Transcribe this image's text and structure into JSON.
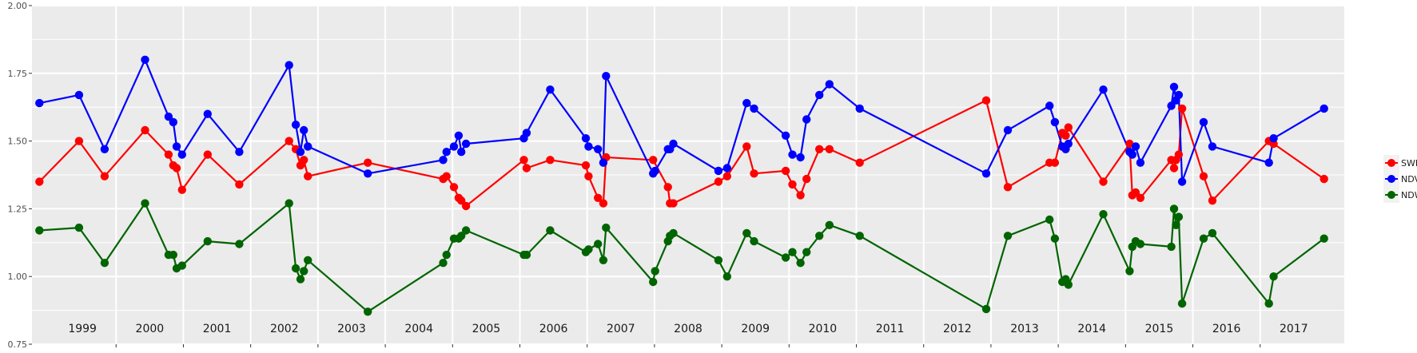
{
  "chart_data": {
    "type": "line",
    "title": "",
    "xlabel": "",
    "ylabel": "",
    "ylim": [
      0.75,
      2.0
    ],
    "xlim": [
      1998.25,
      2017.75
    ],
    "y_ticks": [
      "0.75",
      "1.00",
      "1.25",
      "1.50",
      "1.75",
      "2.00"
    ],
    "year_labels": [
      "1999",
      "2000",
      "2001",
      "2002",
      "2003",
      "2004",
      "2005",
      "2006",
      "2007",
      "2008",
      "2009",
      "2010",
      "2011",
      "2012",
      "2013",
      "2014",
      "2015",
      "2016",
      "2017"
    ],
    "grid": true,
    "legend_position": "right",
    "colors": {
      "panel_bg": "#ebebeb",
      "grid": "#ffffff"
    },
    "series": [
      {
        "name": "SWIR",
        "color": "#ff0000",
        "points": [
          [
            1998.36,
            1.35
          ],
          [
            1998.95,
            1.5
          ],
          [
            1999.33,
            1.37
          ],
          [
            1999.93,
            1.54
          ],
          [
            2000.28,
            1.45
          ],
          [
            2000.35,
            1.41
          ],
          [
            2000.4,
            1.4
          ],
          [
            2000.48,
            1.32
          ],
          [
            2000.86,
            1.45
          ],
          [
            2001.33,
            1.34
          ],
          [
            2002.07,
            1.5
          ],
          [
            2002.17,
            1.47
          ],
          [
            2002.24,
            1.41
          ],
          [
            2002.29,
            1.43
          ],
          [
            2002.35,
            1.37
          ],
          [
            2003.24,
            1.42
          ],
          [
            2004.36,
            1.36
          ],
          [
            2004.41,
            1.37
          ],
          [
            2004.52,
            1.33
          ],
          [
            2004.59,
            1.29
          ],
          [
            2004.63,
            1.28
          ],
          [
            2004.7,
            1.26
          ],
          [
            2005.56,
            1.43
          ],
          [
            2005.6,
            1.4
          ],
          [
            2005.95,
            1.43
          ],
          [
            2006.48,
            1.41
          ],
          [
            2006.52,
            1.37
          ],
          [
            2006.66,
            1.29
          ],
          [
            2006.74,
            1.27
          ],
          [
            2006.78,
            1.44
          ],
          [
            2007.48,
            1.43
          ],
          [
            2007.7,
            1.33
          ],
          [
            2007.73,
            1.27
          ],
          [
            2007.78,
            1.27
          ],
          [
            2008.45,
            1.35
          ],
          [
            2008.58,
            1.37
          ],
          [
            2008.87,
            1.48
          ],
          [
            2008.98,
            1.38
          ],
          [
            2009.45,
            1.39
          ],
          [
            2009.55,
            1.34
          ],
          [
            2009.67,
            1.3
          ],
          [
            2009.76,
            1.36
          ],
          [
            2009.95,
            1.47
          ],
          [
            2010.1,
            1.47
          ],
          [
            2010.55,
            1.42
          ],
          [
            2012.43,
            1.65
          ],
          [
            2012.75,
            1.33
          ],
          [
            2013.37,
            1.42
          ],
          [
            2013.45,
            1.42
          ],
          [
            2013.56,
            1.53
          ],
          [
            2013.61,
            1.52
          ],
          [
            2013.65,
            1.55
          ],
          [
            2014.17,
            1.35
          ],
          [
            2014.56,
            1.49
          ],
          [
            2014.6,
            1.3
          ],
          [
            2014.65,
            1.31
          ],
          [
            2014.72,
            1.29
          ],
          [
            2015.18,
            1.43
          ],
          [
            2015.22,
            1.4
          ],
          [
            2015.25,
            1.43
          ],
          [
            2015.29,
            1.45
          ],
          [
            2015.34,
            1.62
          ],
          [
            2015.66,
            1.37
          ],
          [
            2015.79,
            1.28
          ],
          [
            2016.63,
            1.5
          ],
          [
            2016.7,
            1.49
          ],
          [
            2017.45,
            1.36
          ]
        ]
      },
      {
        "name": "NDVI",
        "color": "#0000ff",
        "points": [
          [
            1998.36,
            1.64
          ],
          [
            1998.95,
            1.67
          ],
          [
            1999.33,
            1.47
          ],
          [
            1999.93,
            1.8
          ],
          [
            2000.28,
            1.59
          ],
          [
            2000.35,
            1.57
          ],
          [
            2000.4,
            1.48
          ],
          [
            2000.48,
            1.45
          ],
          [
            2000.86,
            1.6
          ],
          [
            2001.33,
            1.46
          ],
          [
            2002.07,
            1.78
          ],
          [
            2002.17,
            1.56
          ],
          [
            2002.24,
            1.46
          ],
          [
            2002.29,
            1.54
          ],
          [
            2002.35,
            1.48
          ],
          [
            2003.24,
            1.38
          ],
          [
            2004.36,
            1.43
          ],
          [
            2004.41,
            1.46
          ],
          [
            2004.52,
            1.48
          ],
          [
            2004.59,
            1.52
          ],
          [
            2004.63,
            1.46
          ],
          [
            2004.7,
            1.49
          ],
          [
            2005.56,
            1.51
          ],
          [
            2005.6,
            1.53
          ],
          [
            2005.95,
            1.69
          ],
          [
            2006.48,
            1.51
          ],
          [
            2006.52,
            1.48
          ],
          [
            2006.66,
            1.47
          ],
          [
            2006.74,
            1.42
          ],
          [
            2006.78,
            1.74
          ],
          [
            2007.48,
            1.38
          ],
          [
            2007.51,
            1.39
          ],
          [
            2007.7,
            1.47
          ],
          [
            2007.73,
            1.47
          ],
          [
            2007.78,
            1.49
          ],
          [
            2008.45,
            1.39
          ],
          [
            2008.58,
            1.4
          ],
          [
            2008.87,
            1.64
          ],
          [
            2008.98,
            1.62
          ],
          [
            2009.45,
            1.52
          ],
          [
            2009.55,
            1.45
          ],
          [
            2009.67,
            1.44
          ],
          [
            2009.76,
            1.58
          ],
          [
            2009.95,
            1.67
          ],
          [
            2010.1,
            1.71
          ],
          [
            2010.55,
            1.62
          ],
          [
            2012.43,
            1.38
          ],
          [
            2012.75,
            1.54
          ],
          [
            2013.37,
            1.63
          ],
          [
            2013.45,
            1.57
          ],
          [
            2013.56,
            1.48
          ],
          [
            2013.61,
            1.47
          ],
          [
            2013.65,
            1.49
          ],
          [
            2014.17,
            1.69
          ],
          [
            2014.56,
            1.46
          ],
          [
            2014.6,
            1.45
          ],
          [
            2014.65,
            1.48
          ],
          [
            2014.72,
            1.42
          ],
          [
            2015.18,
            1.63
          ],
          [
            2015.22,
            1.7
          ],
          [
            2015.25,
            1.65
          ],
          [
            2015.29,
            1.67
          ],
          [
            2015.34,
            1.35
          ],
          [
            2015.66,
            1.57
          ],
          [
            2015.79,
            1.48
          ],
          [
            2016.63,
            1.42
          ],
          [
            2016.7,
            1.51
          ],
          [
            2017.45,
            1.62
          ]
        ]
      },
      {
        "name": "NDWI",
        "color": "#006400",
        "points": [
          [
            1998.36,
            1.17
          ],
          [
            1998.95,
            1.18
          ],
          [
            1999.33,
            1.05
          ],
          [
            1999.93,
            1.27
          ],
          [
            2000.28,
            1.08
          ],
          [
            2000.35,
            1.08
          ],
          [
            2000.4,
            1.03
          ],
          [
            2000.48,
            1.04
          ],
          [
            2000.86,
            1.13
          ],
          [
            2001.33,
            1.12
          ],
          [
            2002.07,
            1.27
          ],
          [
            2002.17,
            1.03
          ],
          [
            2002.24,
            0.99
          ],
          [
            2002.29,
            1.02
          ],
          [
            2002.35,
            1.06
          ],
          [
            2003.24,
            0.87
          ],
          [
            2004.36,
            1.05
          ],
          [
            2004.41,
            1.08
          ],
          [
            2004.52,
            1.14
          ],
          [
            2004.59,
            1.14
          ],
          [
            2004.63,
            1.15
          ],
          [
            2004.7,
            1.17
          ],
          [
            2005.56,
            1.08
          ],
          [
            2005.6,
            1.08
          ],
          [
            2005.95,
            1.17
          ],
          [
            2006.48,
            1.09
          ],
          [
            2006.52,
            1.1
          ],
          [
            2006.66,
            1.12
          ],
          [
            2006.74,
            1.06
          ],
          [
            2006.78,
            1.18
          ],
          [
            2007.48,
            0.98
          ],
          [
            2007.51,
            1.02
          ],
          [
            2007.7,
            1.13
          ],
          [
            2007.73,
            1.15
          ],
          [
            2007.78,
            1.16
          ],
          [
            2008.45,
            1.06
          ],
          [
            2008.58,
            1.0
          ],
          [
            2008.87,
            1.16
          ],
          [
            2008.98,
            1.13
          ],
          [
            2009.45,
            1.07
          ],
          [
            2009.55,
            1.09
          ],
          [
            2009.67,
            1.05
          ],
          [
            2009.76,
            1.09
          ],
          [
            2009.95,
            1.15
          ],
          [
            2010.1,
            1.19
          ],
          [
            2010.55,
            1.15
          ],
          [
            2012.43,
            0.88
          ],
          [
            2012.75,
            1.15
          ],
          [
            2013.37,
            1.21
          ],
          [
            2013.45,
            1.14
          ],
          [
            2013.56,
            0.98
          ],
          [
            2013.61,
            0.99
          ],
          [
            2013.65,
            0.97
          ],
          [
            2014.17,
            1.23
          ],
          [
            2014.56,
            1.02
          ],
          [
            2014.6,
            1.11
          ],
          [
            2014.65,
            1.13
          ],
          [
            2014.72,
            1.12
          ],
          [
            2015.18,
            1.11
          ],
          [
            2015.22,
            1.25
          ],
          [
            2015.25,
            1.19
          ],
          [
            2015.29,
            1.22
          ],
          [
            2015.34,
            0.9
          ],
          [
            2015.66,
            1.14
          ],
          [
            2015.79,
            1.16
          ],
          [
            2016.63,
            0.9
          ],
          [
            2016.7,
            1.0
          ],
          [
            2017.45,
            1.14
          ]
        ]
      }
    ]
  }
}
